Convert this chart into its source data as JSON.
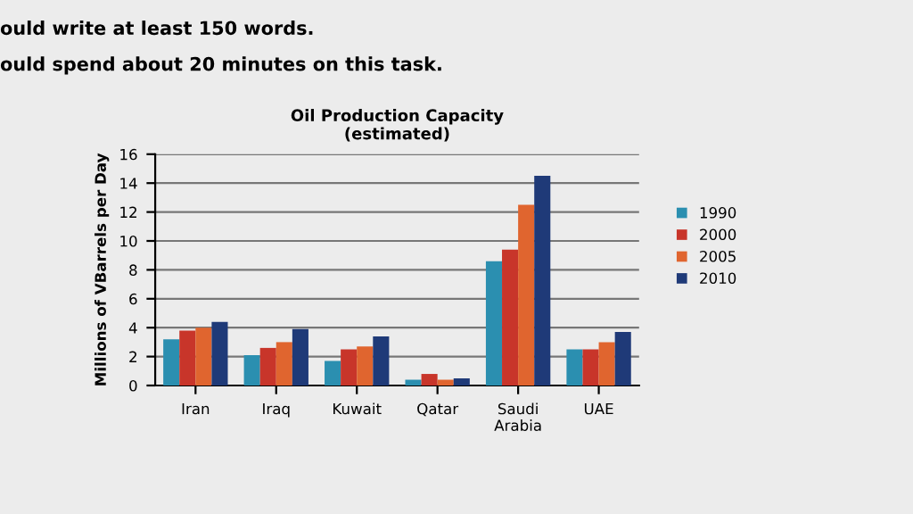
{
  "chart_data": {
    "type": "bar",
    "title": "Oil Production Capacity\n(estimated)",
    "ylabel": "Millions of VBarrels per Day",
    "annotations": [
      "ould write at least 150 words.",
      "ould spend about 20 minutes on this task."
    ],
    "categories": [
      "Iran",
      "Iraq",
      "Kuwait",
      "Qatar",
      "Saudi\nArabia",
      "UAE"
    ],
    "series": [
      {
        "name": "1990",
        "color": "#2b8fb0",
        "values": [
          3.2,
          2.1,
          1.7,
          0.4,
          8.6,
          2.5
        ]
      },
      {
        "name": "2000",
        "color": "#c8352a",
        "values": [
          3.8,
          2.6,
          2.5,
          0.8,
          9.4,
          2.5
        ]
      },
      {
        "name": "2005",
        "color": "#e0652f",
        "values": [
          4.0,
          3.0,
          2.7,
          0.4,
          12.5,
          3.0
        ]
      },
      {
        "name": "2010",
        "color": "#1f3a78",
        "values": [
          4.4,
          3.9,
          3.4,
          0.5,
          14.5,
          3.7
        ]
      }
    ],
    "ylim": [
      0,
      16
    ],
    "yticks": [
      0,
      2,
      4,
      6,
      8,
      10,
      12,
      14,
      16
    ],
    "grid": "y",
    "legend": "right"
  }
}
